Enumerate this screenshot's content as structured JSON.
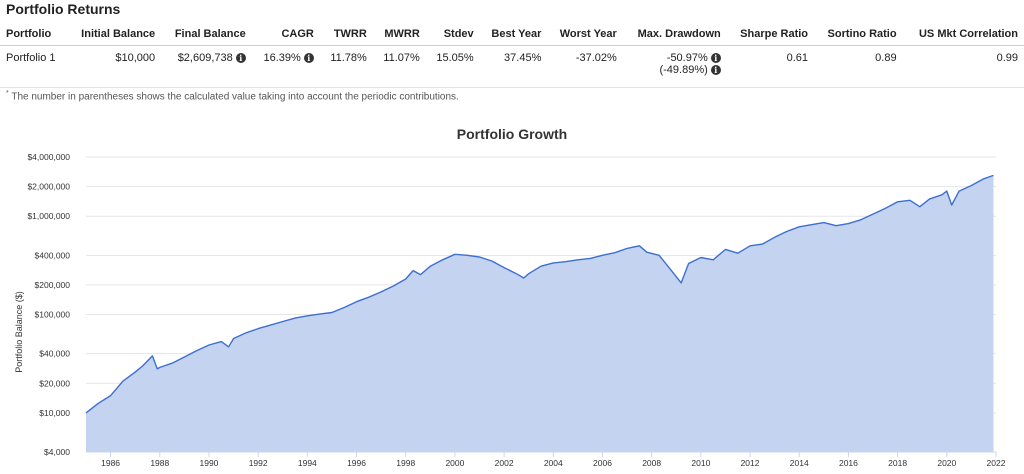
{
  "section_title": "Portfolio Returns",
  "table": {
    "headers": [
      "Portfolio",
      "Initial Balance",
      "Final Balance",
      "CAGR",
      "TWRR",
      "MWRR",
      "Stdev",
      "Best Year",
      "Worst Year",
      "Max. Drawdown",
      "Sharpe Ratio",
      "Sortino Ratio",
      "US Mkt Correlation"
    ],
    "row": {
      "portfolio": "Portfolio 1",
      "initial_balance": "$10,000",
      "final_balance": "$2,609,738",
      "cagr": "16.39%",
      "twrr": "11.78%",
      "mwrr": "11.07%",
      "stdev": "15.05%",
      "best_year": "37.45%",
      "worst_year": "-37.02%",
      "max_drawdown": "-50.97%",
      "max_drawdown_contrib": "(-49.89%)",
      "sharpe": "0.61",
      "sortino": "0.89",
      "us_mkt_corr": "0.99"
    }
  },
  "footnote_marker": "*",
  "footnote": "The number in parentheses shows the calculated value taking into account the periodic contributions.",
  "icons": {
    "info": "info-icon"
  },
  "colors": {
    "line": "#3d6fd1",
    "fill": "#c4d3ef",
    "grid": "#e6e6e6"
  },
  "chart_data": {
    "type": "area",
    "title": "Portfolio Growth",
    "ylabel": "Portfolio Balance ($)",
    "xlabel": "",
    "yscale": "log",
    "ylim": [
      4000,
      4000000
    ],
    "yticks": [
      4000,
      10000,
      20000,
      40000,
      100000,
      200000,
      400000,
      1000000,
      2000000,
      4000000
    ],
    "ytick_labels": [
      "$4,000",
      "$10,000",
      "$20,000",
      "$40,000",
      "$100,000",
      "$200,000",
      "$400,000",
      "$1,000,000",
      "$2,000,000",
      "$4,000,000"
    ],
    "xlim": [
      1985.0,
      2022.0
    ],
    "xticks": [
      1986,
      1988,
      1990,
      1992,
      1994,
      1996,
      1998,
      2000,
      2002,
      2004,
      2006,
      2008,
      2010,
      2012,
      2014,
      2016,
      2018,
      2020,
      2022
    ],
    "grid": true,
    "legend": "none",
    "series": [
      {
        "x": [
          1985.0,
          1985.5,
          1986.0,
          1986.5,
          1987.0,
          1987.3,
          1987.7,
          1987.9,
          1988.0,
          1988.5,
          1989.0,
          1989.5,
          1990.0,
          1990.5,
          1990.8,
          1991.0,
          1991.5,
          1992.0,
          1992.5,
          1993.0,
          1993.5,
          1994.0,
          1994.5,
          1995.0,
          1995.5,
          1996.0,
          1996.5,
          1997.0,
          1997.5,
          1998.0,
          1998.3,
          1998.6,
          1999.0,
          1999.5,
          2000.0,
          2000.5,
          2001.0,
          2001.5,
          2002.0,
          2002.5,
          2002.8,
          2003.0,
          2003.5,
          2004.0,
          2004.5,
          2005.0,
          2005.5,
          2006.0,
          2006.5,
          2007.0,
          2007.5,
          2007.8,
          2008.3,
          2008.8,
          2009.2,
          2009.5,
          2010.0,
          2010.5,
          2011.0,
          2011.5,
          2012.0,
          2012.5,
          2013.0,
          2013.5,
          2014.0,
          2014.5,
          2015.0,
          2015.5,
          2016.0,
          2016.5,
          2017.0,
          2017.5,
          2018.0,
          2018.5,
          2018.9,
          2019.3,
          2019.8,
          2020.0,
          2020.2,
          2020.5,
          2021.0,
          2021.5,
          2021.9
        ],
        "y": [
          10000,
          12500,
          15000,
          21000,
          26000,
          30000,
          38000,
          28000,
          29000,
          32000,
          37000,
          43000,
          49000,
          53000,
          47000,
          57000,
          65000,
          72000,
          78000,
          85000,
          92000,
          97000,
          101000,
          105000,
          118000,
          135000,
          150000,
          170000,
          195000,
          230000,
          280000,
          255000,
          310000,
          360000,
          410000,
          400000,
          385000,
          350000,
          300000,
          260000,
          235000,
          260000,
          310000,
          335000,
          345000,
          360000,
          372000,
          400000,
          425000,
          470000,
          500000,
          430000,
          400000,
          280000,
          210000,
          330000,
          380000,
          360000,
          460000,
          420000,
          500000,
          520000,
          610000,
          700000,
          780000,
          820000,
          860000,
          800000,
          840000,
          920000,
          1050000,
          1200000,
          1400000,
          1450000,
          1250000,
          1500000,
          1650000,
          1800000,
          1300000,
          1800000,
          2050000,
          2400000,
          2600000
        ]
      }
    ]
  }
}
